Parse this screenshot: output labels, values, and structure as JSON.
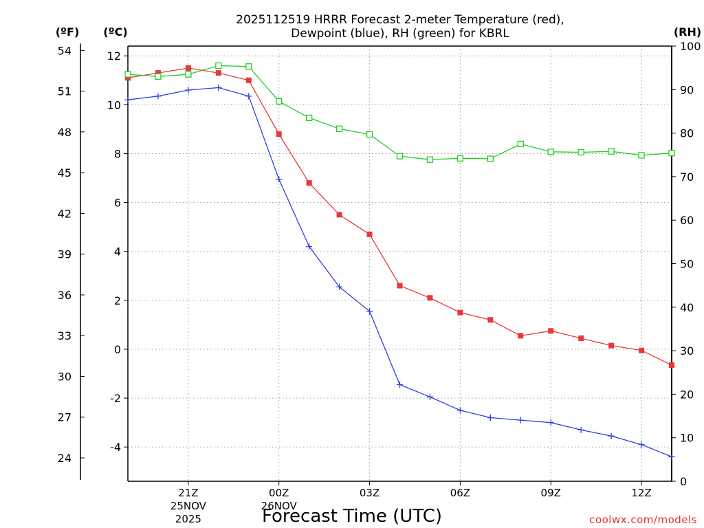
{
  "chart_data": {
    "type": "line",
    "title_line1": "2025112519 HRRR Forecast 2-meter Temperature (red),",
    "title_line2": "Dewpoint (blue), RH (green) for KBRL",
    "unit_f": "(ºF)",
    "unit_c": "(ºC)",
    "unit_rh": "(RH)",
    "xlabel": "Forecast Time (UTC)",
    "credit": "coolwx.com/models",
    "x_hours": [
      19,
      20,
      21,
      22,
      23,
      24,
      25,
      26,
      27,
      28,
      29,
      30,
      31,
      32,
      33,
      34,
      35,
      36,
      37
    ],
    "xlim": [
      19,
      37
    ],
    "x_ticks": [
      {
        "hour": 21,
        "label": "21Z",
        "sub1": "25NOV",
        "sub2": "2025"
      },
      {
        "hour": 24,
        "label": "00Z",
        "sub1": "26NOV",
        "sub2": ""
      },
      {
        "hour": 27,
        "label": "03Z",
        "sub1": "",
        "sub2": ""
      },
      {
        "hour": 30,
        "label": "06Z",
        "sub1": "",
        "sub2": ""
      },
      {
        "hour": 33,
        "label": "09Z",
        "sub1": "",
        "sub2": ""
      },
      {
        "hour": 36,
        "label": "12Z",
        "sub1": "",
        "sub2": ""
      }
    ],
    "ylim_c": [
      -5.4,
      12.4
    ],
    "y_ticks_c": [
      12,
      10,
      8,
      6,
      4,
      2,
      0,
      -2,
      -4
    ],
    "y_ticks_f": [
      54,
      51,
      48,
      45,
      42,
      39,
      36,
      33,
      30,
      27,
      24
    ],
    "ylim_rh": [
      0,
      100
    ],
    "y_ticks_rh": [
      100,
      90,
      80,
      70,
      60,
      50,
      40,
      30,
      20,
      10,
      0
    ],
    "grid": true,
    "series": [
      {
        "name": "Temperature",
        "axis": "c",
        "color": "#e8383a",
        "marker": "filled-square",
        "values": [
          11.1,
          11.3,
          11.5,
          11.3,
          11.0,
          8.8,
          6.8,
          5.5,
          4.7,
          2.6,
          2.1,
          1.5,
          1.2,
          0.55,
          0.75,
          0.45,
          0.15,
          -0.05,
          -0.65
        ]
      },
      {
        "name": "Dewpoint",
        "axis": "c",
        "color": "#2e3ee0",
        "marker": "plus",
        "values": [
          10.2,
          10.35,
          10.6,
          10.7,
          10.35,
          6.95,
          4.2,
          2.55,
          1.55,
          -1.45,
          -1.95,
          -2.5,
          -2.8,
          -2.9,
          -3.0,
          -3.3,
          -3.55,
          -3.9,
          -4.4
        ]
      },
      {
        "name": "RH",
        "axis": "rh",
        "color": "#22cc22",
        "marker": "open-square",
        "values": [
          93.5,
          93.0,
          93.5,
          95.5,
          95.3,
          87.3,
          83.5,
          81.0,
          79.7,
          74.7,
          73.9,
          74.2,
          74.1,
          77.5,
          75.7,
          75.6,
          75.8,
          74.9,
          75.4
        ]
      }
    ]
  }
}
